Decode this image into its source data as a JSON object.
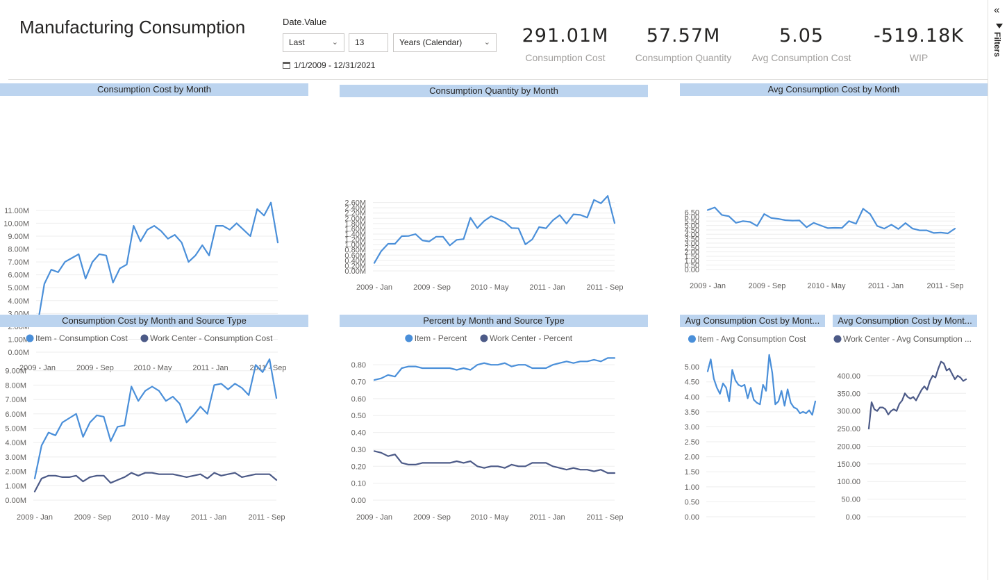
{
  "header": {
    "title": "Manufacturing Consumption"
  },
  "slicer": {
    "label": "Date.Value",
    "mode": "Last",
    "count": "13",
    "unit": "Years (Calendar)",
    "range": "1/1/2009 - 12/31/2021"
  },
  "kpis": [
    {
      "value": "291.01M",
      "label": "Consumption Cost"
    },
    {
      "value": "57.57M",
      "label": "Consumption Quantity"
    },
    {
      "value": "5.05",
      "label": "Avg Consumption Cost"
    },
    {
      "value": "-519.18K",
      "label": "WIP"
    }
  ],
  "filters_pane": {
    "label": "Filters",
    "collapse_glyph": "«"
  },
  "colors": {
    "series1": "#4a8fd9",
    "series2": "#4c5a87",
    "title_bg": "#bcd4ef",
    "grid": "#eeeeee",
    "axis_text": "#605e5c"
  },
  "chart_data": [
    {
      "id": "c1",
      "type": "line",
      "title": "Consumption Cost by Month",
      "x_ticks": [
        "2009 - Jan",
        "2009 - Sep",
        "2010 - May",
        "2011 - Jan",
        "2011 - Sep"
      ],
      "y_ticks": [
        "0.00M",
        "1.00M",
        "2.00M",
        "3.00M",
        "4.00M",
        "5.00M",
        "6.00M",
        "7.00M",
        "8.00M",
        "9.00M",
        "10.00M",
        "11.00M"
      ],
      "ylim": [
        0,
        11.8
      ],
      "n_points": 36,
      "legend": [],
      "series": [
        {
          "name": "Consumption Cost",
          "color": "#4a8fd9",
          "values": [
            2.1,
            5.3,
            6.4,
            6.2,
            7.0,
            7.3,
            7.6,
            5.7,
            7.0,
            7.6,
            7.5,
            5.4,
            6.5,
            6.8,
            9.8,
            8.6,
            9.5,
            9.8,
            9.4,
            8.8,
            9.1,
            8.5,
            7.0,
            7.5,
            8.3,
            7.5,
            9.8,
            9.8,
            9.5,
            10.0,
            9.5,
            9.0,
            11.1,
            10.6,
            11.6,
            8.5
          ]
        }
      ]
    },
    {
      "id": "c2",
      "type": "line",
      "title": "Consumption Quantity by Month",
      "x_ticks": [
        "2009 - Jan",
        "2009 - Sep",
        "2010 - May",
        "2011 - Jan",
        "2011 - Sep"
      ],
      "y_ticks": [
        "0.00M",
        "0.20M",
        "0.40M",
        "0.60M",
        "0.80M",
        "1.00M",
        "1.20M",
        "1.40M",
        "1.60M",
        "1.80M",
        "2.00M",
        "2.20M",
        "2.40M",
        "2.60M"
      ],
      "ylim": [
        0,
        2.8
      ],
      "n_points": 36,
      "legend": [],
      "series": [
        {
          "name": "Consumption Quantity",
          "color": "#4a8fd9",
          "values": [
            0.3,
            0.75,
            1.03,
            1.03,
            1.32,
            1.33,
            1.4,
            1.16,
            1.12,
            1.3,
            1.3,
            0.97,
            1.18,
            1.21,
            2.02,
            1.63,
            1.9,
            2.08,
            1.97,
            1.86,
            1.63,
            1.62,
            1.01,
            1.2,
            1.67,
            1.62,
            1.92,
            2.12,
            1.8,
            2.15,
            2.13,
            2.03,
            2.7,
            2.57,
            2.85,
            1.82
          ]
        }
      ]
    },
    {
      "id": "c3",
      "type": "line",
      "title": "Avg Consumption Cost by Month",
      "x_ticks": [
        "2009 - Jan",
        "2009 - Sep",
        "2010 - May",
        "2011 - Jan",
        "2011 - Sep"
      ],
      "y_ticks": [
        "0.00",
        "0.50",
        "1.00",
        "1.50",
        "2.00",
        "2.50",
        "3.00",
        "3.50",
        "4.00",
        "4.50",
        "5.00",
        "5.50",
        "6.00",
        "6.50"
      ],
      "ylim": [
        0,
        7.1
      ],
      "n_points": 36,
      "legend": [],
      "series": [
        {
          "name": "Avg Consumption Cost",
          "color": "#4a8fd9",
          "values": [
            6.75,
            7.05,
            6.2,
            6.05,
            5.3,
            5.5,
            5.4,
            4.95,
            6.3,
            5.85,
            5.75,
            5.6,
            5.55,
            5.57,
            4.8,
            5.3,
            5.0,
            4.7,
            4.73,
            4.72,
            5.5,
            5.2,
            6.9,
            6.3,
            4.95,
            4.65,
            5.1,
            4.6,
            5.28,
            4.65,
            4.45,
            4.45,
            4.15,
            4.2,
            4.1,
            4.65
          ]
        }
      ]
    },
    {
      "id": "c4",
      "type": "line",
      "title": "Consumption Cost by Month and Source Type",
      "x_ticks": [
        "2009 - Jan",
        "2009 - Sep",
        "2010 - May",
        "2011 - Jan",
        "2011 - Sep"
      ],
      "y_ticks": [
        "0.00M",
        "1.00M",
        "2.00M",
        "3.00M",
        "4.00M",
        "5.00M",
        "6.00M",
        "7.00M",
        "8.00M",
        "9.00M"
      ],
      "ylim": [
        0,
        10.0
      ],
      "n_points": 36,
      "legend": [
        "Item - Consumption Cost",
        "Work Center - Consumption Cost"
      ],
      "series": [
        {
          "name": "Item - Consumption Cost",
          "color": "#4a8fd9",
          "values": [
            1.5,
            3.8,
            4.7,
            4.5,
            5.4,
            5.7,
            6.0,
            4.4,
            5.4,
            5.9,
            5.8,
            4.1,
            5.1,
            5.2,
            7.9,
            6.9,
            7.6,
            7.9,
            7.6,
            6.9,
            7.2,
            6.7,
            5.4,
            5.9,
            6.5,
            6.0,
            8.0,
            8.1,
            7.7,
            8.1,
            7.8,
            7.3,
            9.4,
            8.9,
            9.8,
            7.1
          ]
        },
        {
          "name": "Work Center - Consumption Cost",
          "color": "#4c5a87",
          "values": [
            0.6,
            1.5,
            1.7,
            1.7,
            1.6,
            1.6,
            1.7,
            1.3,
            1.6,
            1.7,
            1.7,
            1.2,
            1.4,
            1.6,
            1.9,
            1.7,
            1.9,
            1.9,
            1.8,
            1.8,
            1.8,
            1.7,
            1.6,
            1.7,
            1.8,
            1.5,
            1.9,
            1.7,
            1.8,
            1.9,
            1.6,
            1.7,
            1.8,
            1.8,
            1.8,
            1.4
          ]
        }
      ]
    },
    {
      "id": "c5",
      "type": "line",
      "title": "Percent by Month and Source Type",
      "x_ticks": [
        "2009 - Jan",
        "2009 - Sep",
        "2010 - May",
        "2011 - Jan",
        "2011 - Sep"
      ],
      "y_ticks": [
        "0.00",
        "0.10",
        "0.20",
        "0.30",
        "0.40",
        "0.50",
        "0.60",
        "0.70",
        "0.80"
      ],
      "ylim": [
        0,
        0.85
      ],
      "n_points": 36,
      "legend": [
        "Item - Percent",
        "Work Center - Percent"
      ],
      "series": [
        {
          "name": "Item - Percent",
          "color": "#4a8fd9",
          "values": [
            0.71,
            0.72,
            0.74,
            0.73,
            0.78,
            0.79,
            0.79,
            0.78,
            0.78,
            0.78,
            0.78,
            0.78,
            0.77,
            0.78,
            0.77,
            0.8,
            0.81,
            0.8,
            0.8,
            0.81,
            0.79,
            0.8,
            0.8,
            0.78,
            0.78,
            0.78,
            0.8,
            0.81,
            0.82,
            0.81,
            0.82,
            0.82,
            0.83,
            0.82,
            0.84,
            0.84
          ]
        },
        {
          "name": "Work Center - Percent",
          "color": "#4c5a87",
          "values": [
            0.29,
            0.28,
            0.26,
            0.27,
            0.22,
            0.21,
            0.21,
            0.22,
            0.22,
            0.22,
            0.22,
            0.22,
            0.23,
            0.22,
            0.23,
            0.2,
            0.19,
            0.2,
            0.2,
            0.19,
            0.21,
            0.2,
            0.2,
            0.22,
            0.22,
            0.22,
            0.2,
            0.19,
            0.18,
            0.19,
            0.18,
            0.18,
            0.17,
            0.18,
            0.16,
            0.16
          ]
        }
      ]
    },
    {
      "id": "c6",
      "type": "line",
      "title": "Avg Consumption Cost by Mont...",
      "x_ticks": [],
      "y_ticks": [
        "0.00",
        "0.50",
        "1.00",
        "1.50",
        "2.00",
        "2.50",
        "3.00",
        "3.50",
        "4.00",
        "4.50",
        "5.00"
      ],
      "ylim": [
        0,
        5.35
      ],
      "n_points": 36,
      "legend": [
        "Item - Avg Consumption Cost"
      ],
      "series": [
        {
          "name": "Item - Avg Consumption Cost",
          "color": "#4a8fd9",
          "values": [
            4.85,
            5.25,
            4.6,
            4.3,
            4.1,
            4.45,
            4.3,
            3.85,
            4.9,
            4.55,
            4.4,
            4.35,
            4.4,
            3.95,
            4.3,
            3.9,
            3.8,
            3.75,
            4.4,
            4.2,
            5.4,
            4.8,
            3.75,
            3.85,
            4.2,
            3.7,
            4.25,
            3.8,
            3.65,
            3.6,
            3.45,
            3.5,
            3.45,
            3.55,
            3.4,
            3.85
          ]
        }
      ]
    },
    {
      "id": "c7",
      "type": "line",
      "title": "Avg Consumption Cost by Mont...",
      "x_ticks": [],
      "y_ticks": [
        "0.00",
        "50.00",
        "100.00",
        "150.00",
        "200.00",
        "250.00",
        "300.00",
        "350.00",
        "400.00"
      ],
      "ylim": [
        0,
        455
      ],
      "n_points": 36,
      "legend": [
        "Work Center - Avg Consumption ..."
      ],
      "series": [
        {
          "name": "Work Center - Avg Consumption ...",
          "color": "#4c5a87",
          "values": [
            250,
            325,
            305,
            300,
            310,
            310,
            305,
            290,
            300,
            305,
            300,
            320,
            330,
            350,
            340,
            335,
            340,
            330,
            345,
            360,
            370,
            360,
            385,
            400,
            395,
            420,
            440,
            435,
            415,
            420,
            405,
            390,
            400,
            395,
            385,
            390
          ]
        }
      ]
    }
  ]
}
